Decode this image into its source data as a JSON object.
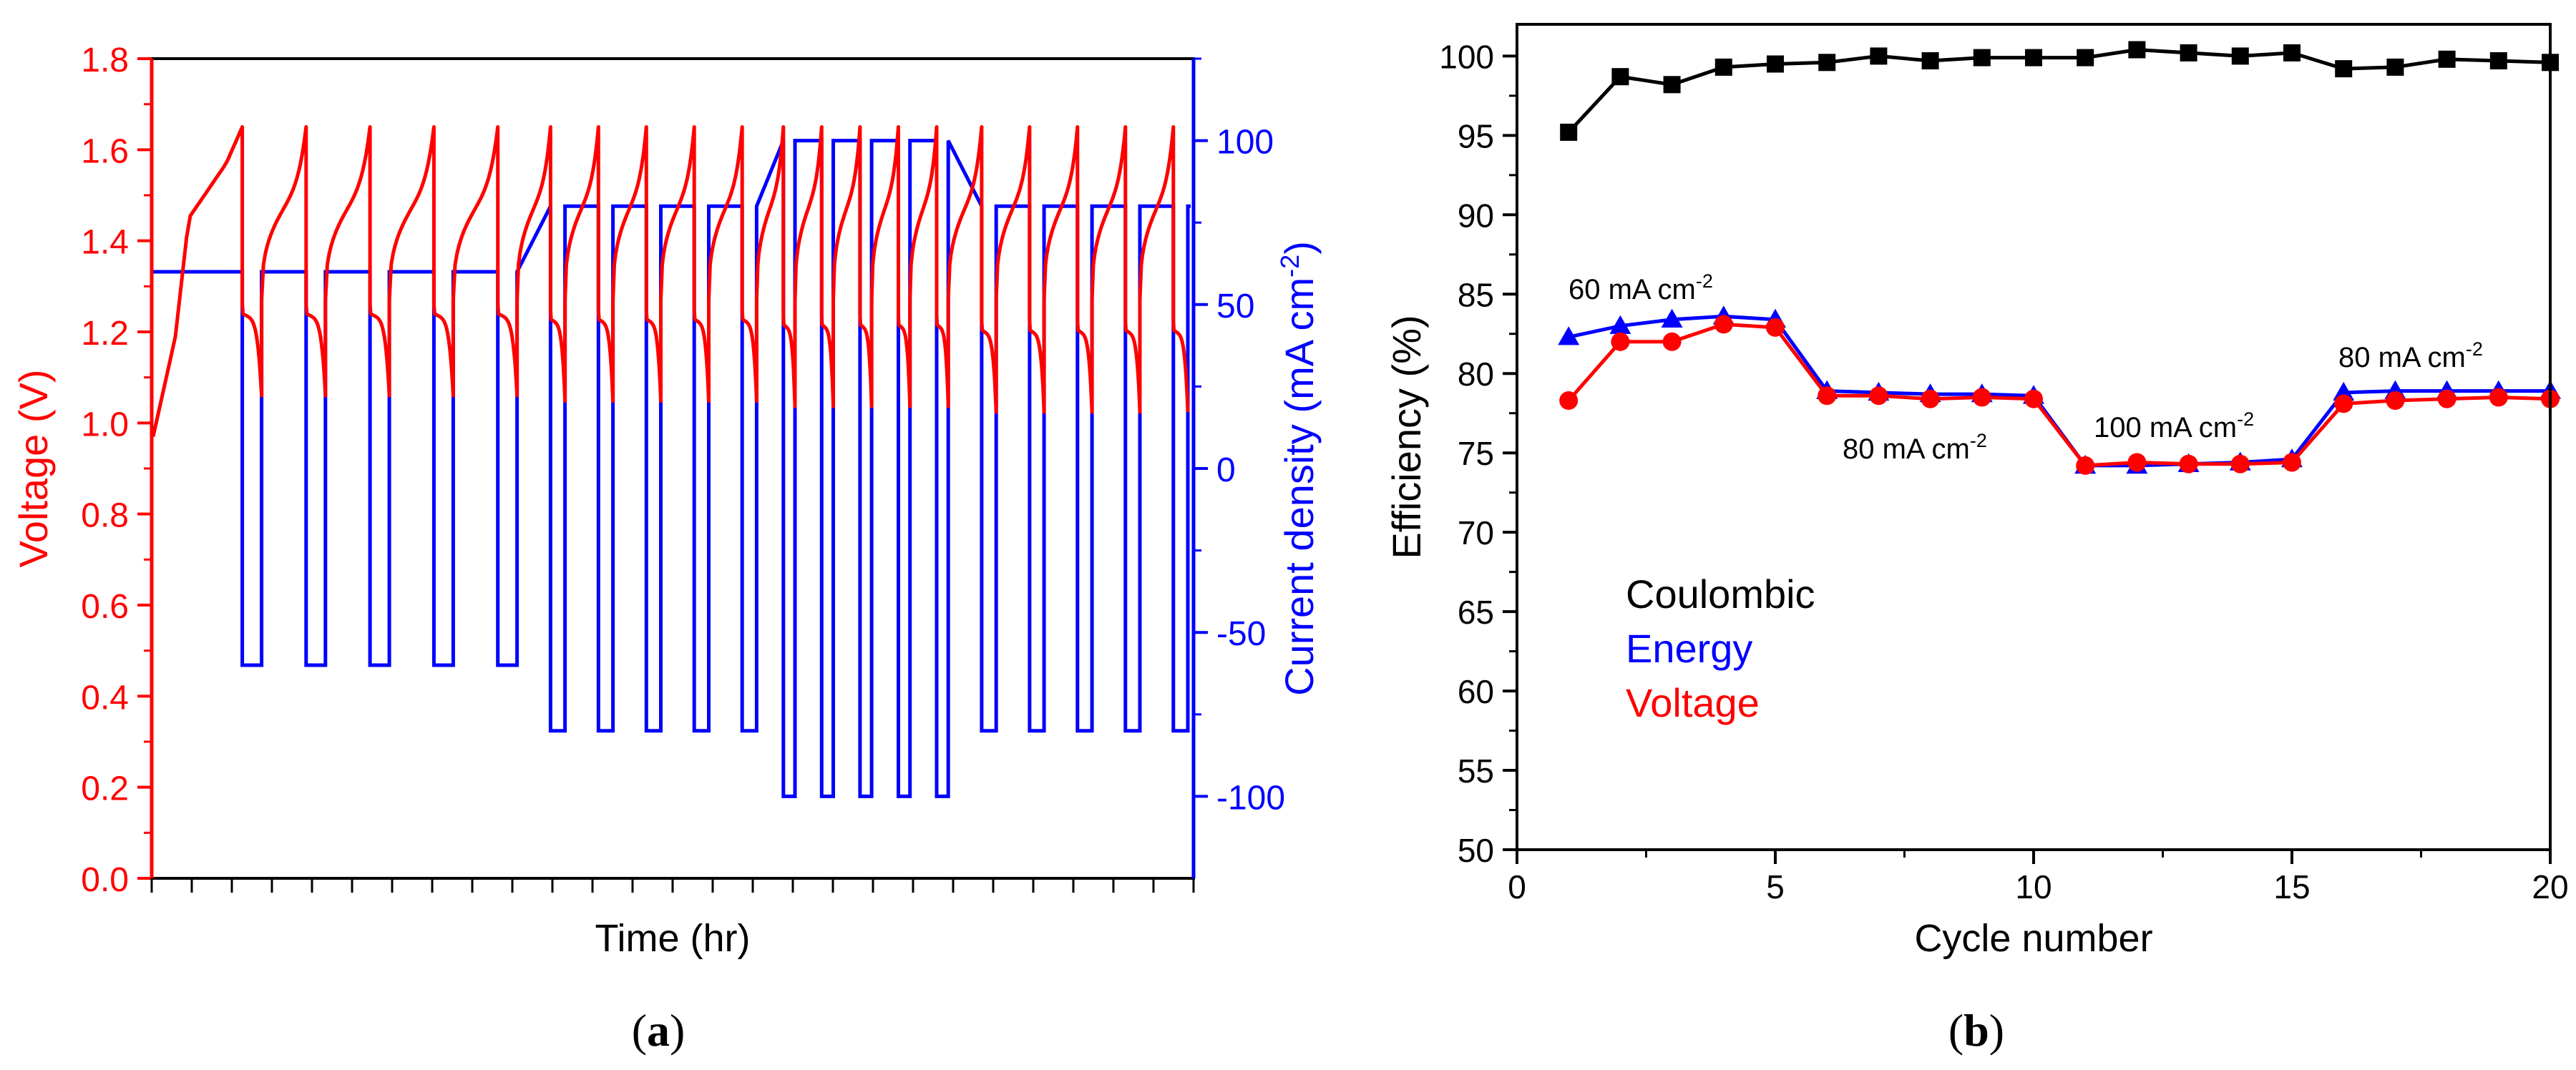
{
  "chart_data": [
    {
      "panel": "(a)",
      "caption_open": "(",
      "caption_letter": "a",
      "caption_close": ")",
      "type": "line",
      "xlabel": "Time (hr)",
      "ylabel_left": "Voltage (V)",
      "ylabel_right_main": "Current density (mA cm",
      "ylabel_right_sup": "-2",
      "ylabel_right_close": ")",
      "ylim_left": [
        0.0,
        1.8
      ],
      "yticks_left": [
        "0.0",
        "0.2",
        "0.4",
        "0.6",
        "0.8",
        "1.0",
        "1.2",
        "1.4",
        "1.6",
        "1.8"
      ],
      "ylim_right": [
        -125,
        125
      ],
      "yticks_right": [
        "-100",
        "-50",
        "0",
        "50",
        "100"
      ],
      "x_tick_count": 27,
      "colors": {
        "voltage": "#ff0000",
        "current": "#0000ff",
        "axis": "#000000"
      },
      "series": [
        {
          "name": "Voltage",
          "axis": "left",
          "charge_top_v": 1.65,
          "discharge_start_v": 1.24,
          "first_charge_start_v": 0.97,
          "cycles_per_segment": [
            5,
            5,
            5,
            5
          ]
        },
        {
          "name": "Current density",
          "axis": "right",
          "segments": [
            {
              "label": "60 mA cm-2",
              "charge": 60,
              "discharge": -60,
              "cycles": 5
            },
            {
              "label": "80 mA cm-2",
              "charge": 80,
              "discharge": -80,
              "cycles": 5
            },
            {
              "label": "100 mA cm-2",
              "charge": 100,
              "discharge": -100,
              "cycles": 5
            },
            {
              "label": "80 mA cm-2",
              "charge": 80,
              "discharge": -80,
              "cycles": 5
            }
          ]
        }
      ]
    },
    {
      "panel": "(b)",
      "caption_open": "(",
      "caption_letter": "b",
      "caption_close": ")",
      "type": "line",
      "xlabel": "Cycle number",
      "ylabel": "Efficiency (%)",
      "xlim": [
        0,
        20
      ],
      "xticks": [
        "0",
        "5",
        "10",
        "15",
        "20"
      ],
      "ylim": [
        50,
        102
      ],
      "yticks": [
        "50",
        "55",
        "60",
        "65",
        "70",
        "75",
        "80",
        "85",
        "90",
        "95",
        "100"
      ],
      "x": [
        1,
        2,
        3,
        4,
        5,
        6,
        7,
        8,
        9,
        10,
        11,
        12,
        13,
        14,
        15,
        16,
        17,
        18,
        19,
        20
      ],
      "series": [
        {
          "name": "Coulombic",
          "color": "#000000",
          "marker": "square",
          "values": [
            95.2,
            98.7,
            98.2,
            99.3,
            99.5,
            99.6,
            100.0,
            99.7,
            99.9,
            99.9,
            99.9,
            100.4,
            100.2,
            100.0,
            100.2,
            99.2,
            99.3,
            99.8,
            99.7,
            99.6
          ]
        },
        {
          "name": "Energy",
          "color": "#0000ff",
          "marker": "triangle",
          "values": [
            82.3,
            83.0,
            83.4,
            83.6,
            83.4,
            78.9,
            78.8,
            78.7,
            78.7,
            78.6,
            74.2,
            74.2,
            74.3,
            74.4,
            74.6,
            78.8,
            78.9,
            78.9,
            78.9,
            78.9
          ]
        },
        {
          "name": "Voltage",
          "color": "#ff0000",
          "marker": "circle",
          "values": [
            78.3,
            82.0,
            82.0,
            83.1,
            82.9,
            78.6,
            78.6,
            78.4,
            78.5,
            78.4,
            74.2,
            74.4,
            74.3,
            74.3,
            74.4,
            78.1,
            78.3,
            78.4,
            78.5,
            78.4
          ]
        }
      ],
      "annotations": [
        {
          "id": "ann60",
          "main": "60 mA cm",
          "sup": "-2"
        },
        {
          "id": "ann80a",
          "main": "80 mA cm",
          "sup": "-2"
        },
        {
          "id": "ann100",
          "main": "100 mA cm",
          "sup": "-2"
        },
        {
          "id": "ann80b",
          "main": "80 mA cm",
          "sup": "-2"
        }
      ]
    }
  ]
}
